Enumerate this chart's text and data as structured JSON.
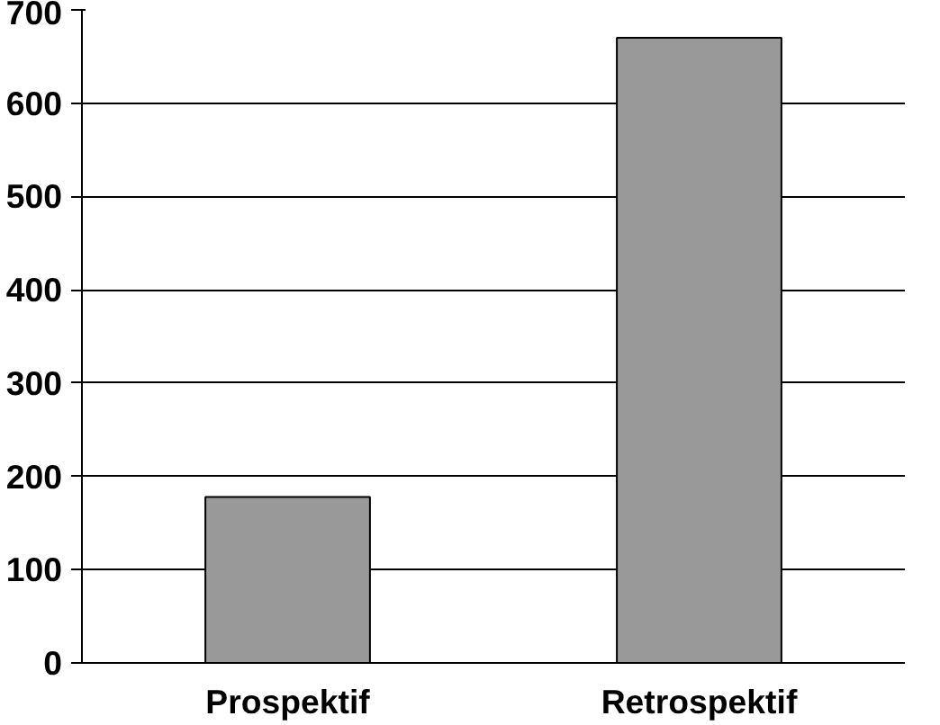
{
  "chart_data": {
    "type": "bar",
    "categories": [
      "Prospektif",
      "Retrospektif"
    ],
    "values": [
      178,
      670
    ],
    "color": "#999999",
    "ylim": [
      0,
      700
    ],
    "yticks": [
      0,
      100,
      200,
      300,
      400,
      500,
      600,
      700
    ],
    "grid": "y"
  }
}
